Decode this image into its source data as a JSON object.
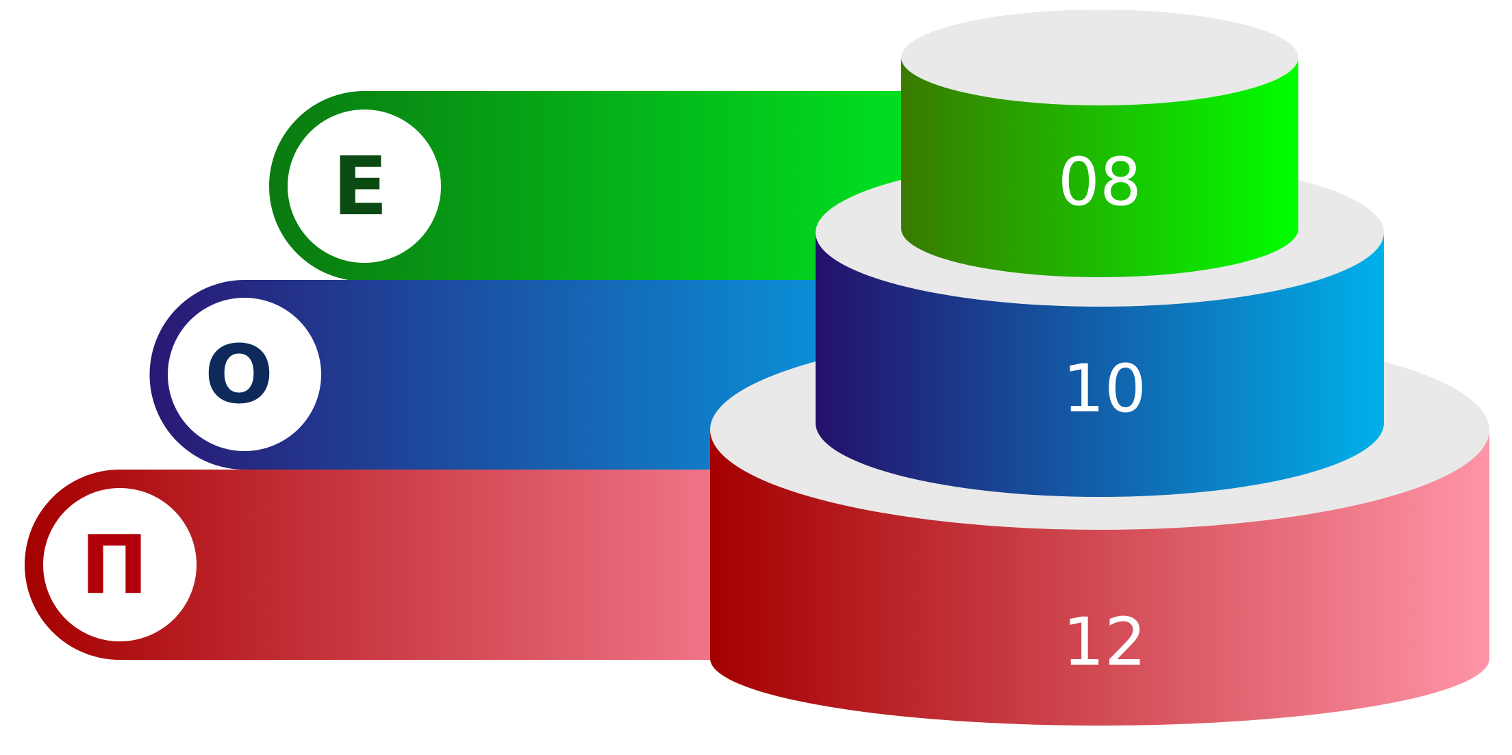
{
  "tiers": [
    {
      "letter": "E",
      "value": "08",
      "gradient_start": "#3a7a00",
      "gradient_end": "#00ff00",
      "band_start": "#0a7a10",
      "band_end": "#00e020",
      "letter_color": "#0b4a12"
    },
    {
      "letter": "O",
      "value": "10",
      "gradient_start": "#24106a",
      "gradient_end": "#00b0ea",
      "band_start": "#2a1874",
      "band_end": "#0a90d8",
      "letter_color": "#0d2a5a"
    },
    {
      "letter": "П",
      "value": "12",
      "gradient_start": "#a40000",
      "gradient_end": "#ff95a8",
      "band_start": "#a40000",
      "band_end": "#f07688",
      "letter_color": "#b0000a"
    }
  ],
  "colors": {
    "ellipse_top": "#e9e9e9",
    "value_text": "#ffffff",
    "badge_fill": "#ffffff"
  }
}
